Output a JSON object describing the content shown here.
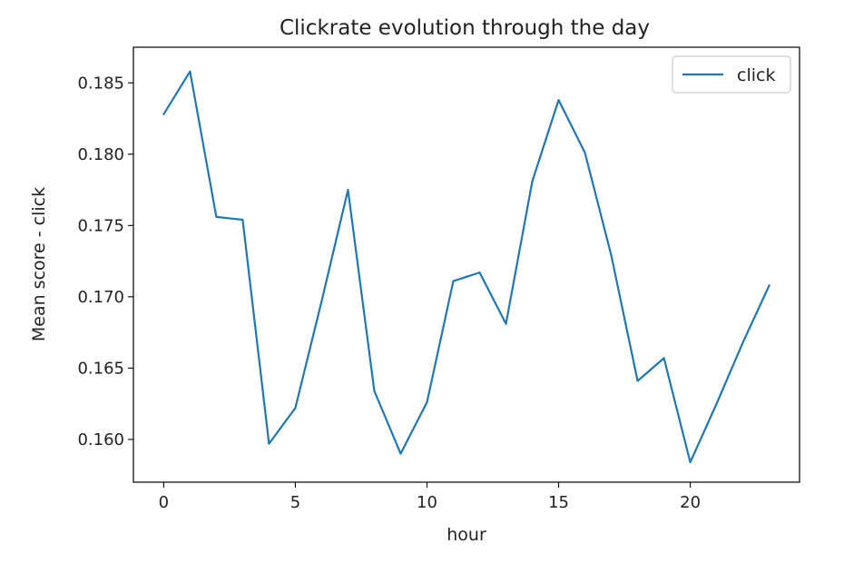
{
  "chart_data": {
    "type": "line",
    "title": "Clickrate evolution through the day",
    "xlabel": "hour",
    "ylabel": "Mean score - click",
    "xlim": [
      -1.15,
      24.15
    ],
    "ylim": [
      0.157,
      0.1875
    ],
    "xticks": [
      0,
      5,
      10,
      15,
      20
    ],
    "xtick_labels": [
      "0",
      "5",
      "10",
      "15",
      "20"
    ],
    "yticks": [
      0.16,
      0.165,
      0.17,
      0.175,
      0.18,
      0.185
    ],
    "ytick_labels": [
      "0.160",
      "0.165",
      "0.170",
      "0.175",
      "0.180",
      "0.185"
    ],
    "legend": {
      "position": "top-right",
      "entries": [
        "click"
      ]
    },
    "grid": false,
    "series": [
      {
        "name": "click",
        "color": "#1f77b4",
        "x": [
          0,
          1,
          2,
          3,
          4,
          5,
          6,
          7,
          8,
          9,
          10,
          11,
          12,
          13,
          14,
          15,
          16,
          17,
          18,
          19,
          20,
          21,
          22,
          23
        ],
        "values": [
          0.1828,
          0.1858,
          0.1756,
          0.1754,
          0.1597,
          0.1622,
          0.1697,
          0.1775,
          0.1634,
          0.159,
          0.1626,
          0.1711,
          0.1717,
          0.1681,
          0.1781,
          0.1838,
          0.1801,
          0.1729,
          0.1641,
          0.1657,
          0.1584,
          0.1625,
          0.1668,
          0.1708
        ]
      }
    ]
  }
}
